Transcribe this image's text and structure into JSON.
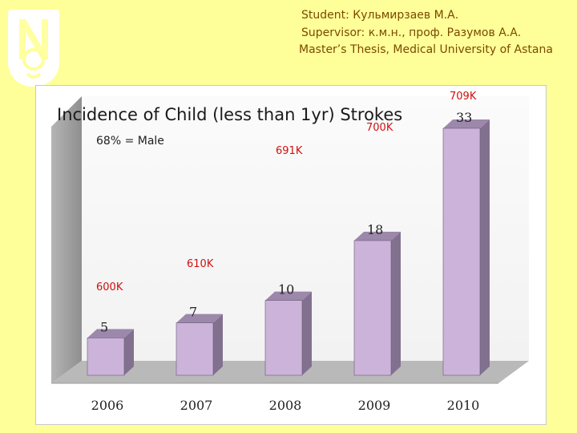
{
  "header": {
    "student": "Student: Кульмирзаев М.А.",
    "supervisor": "Supervisor: к.м.н., проф. Разумов А.А.",
    "thesis": "Master’s Thesis, Medical University of Astana"
  },
  "colors": {
    "background": "#ffff99",
    "bar_front": "#ccb3d9",
    "bar_side": "#82708f",
    "bar_top": "#9c88aa",
    "annotation_red": "#d01010",
    "credit_text": "#7a4a00"
  },
  "chart_data": {
    "type": "bar",
    "title": "Incidence of Child (less than 1yr) Strokes",
    "note": "68% = Male",
    "categories": [
      "2006",
      "2007",
      "2008",
      "2009",
      "2010"
    ],
    "values": [
      5,
      7,
      10,
      18,
      33
    ],
    "value_labels": [
      "5",
      "7",
      "10",
      "18",
      "33"
    ],
    "annotations": [
      "600K",
      "610K",
      "691K",
      "700K",
      "709K"
    ],
    "xlabel": "",
    "ylabel": "",
    "ylim": [
      0,
      34
    ],
    "grid": false,
    "style": "3d"
  }
}
